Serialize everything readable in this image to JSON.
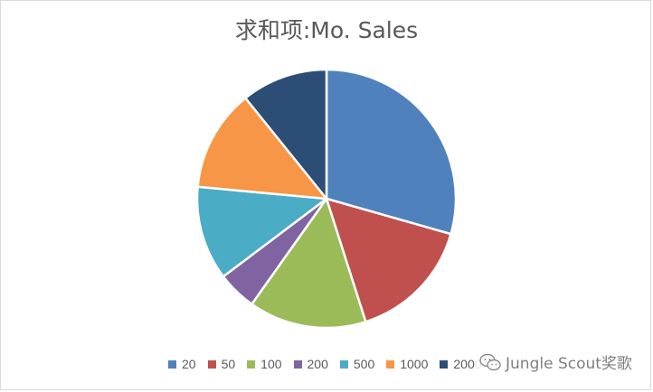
{
  "chart_data": {
    "type": "pie",
    "title": "求和项:Mo. Sales",
    "categories": [
      "20",
      "50",
      "100",
      "200",
      "500",
      "1000",
      "2000"
    ],
    "values": [
      30,
      16,
      15,
      5,
      12,
      13,
      11
    ],
    "colors": [
      "#4f81bd",
      "#c0504d",
      "#9bbb59",
      "#8064a2",
      "#4bacc6",
      "#f79646",
      "#2c4d75"
    ],
    "start_angle": "top (12 o'clock), clockwise",
    "legend_position": "bottom"
  },
  "watermark": {
    "text": "Jungle Scout奖歌",
    "icon": "wechat-icon"
  }
}
